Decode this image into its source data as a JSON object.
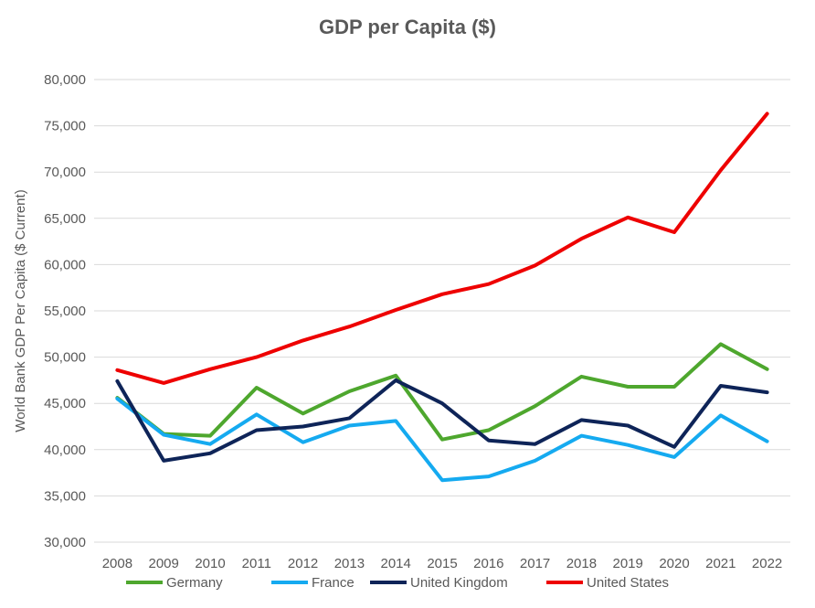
{
  "chart_data": {
    "type": "line",
    "title": "GDP per Capita ($)",
    "ylabel": "World Bank GDP Per Capita ($ Current)",
    "xlabel": "",
    "ylim": [
      30000,
      80000
    ],
    "ytick_values": [
      30000,
      35000,
      40000,
      45000,
      50000,
      55000,
      60000,
      65000,
      70000,
      75000,
      80000
    ],
    "ytick_labels": [
      "30,000",
      "35,000",
      "40,000",
      "45,000",
      "50,000",
      "55,000",
      "60,000",
      "65,000",
      "70,000",
      "75,000",
      "80,000"
    ],
    "categories": [
      "2008",
      "2009",
      "2010",
      "2011",
      "2012",
      "2013",
      "2014",
      "2015",
      "2016",
      "2017",
      "2018",
      "2019",
      "2020",
      "2021",
      "2022"
    ],
    "grid": true,
    "legend_position": "bottom",
    "series": [
      {
        "name": "Germany",
        "color": "#4ea72e",
        "values": [
          45600,
          41700,
          41500,
          46700,
          43900,
          46300,
          48000,
          41100,
          42100,
          44700,
          47900,
          46800,
          46800,
          51400,
          48700
        ]
      },
      {
        "name": "France",
        "color": "#15aaf0",
        "values": [
          45500,
          41600,
          40600,
          43800,
          40800,
          42600,
          43100,
          36700,
          37100,
          38800,
          41500,
          40500,
          39200,
          43700,
          40900
        ]
      },
      {
        "name": "United Kingdom",
        "color": "#0e2458",
        "values": [
          47400,
          38800,
          39600,
          42100,
          42500,
          43400,
          47500,
          45000,
          41000,
          40600,
          43200,
          42600,
          40300,
          46900,
          46200
        ]
      },
      {
        "name": "United States",
        "color": "#ee0000",
        "values": [
          48600,
          47200,
          48700,
          50000,
          51800,
          53300,
          55100,
          56800,
          57900,
          59900,
          62800,
          65100,
          63500,
          70200,
          76300
        ]
      }
    ]
  }
}
